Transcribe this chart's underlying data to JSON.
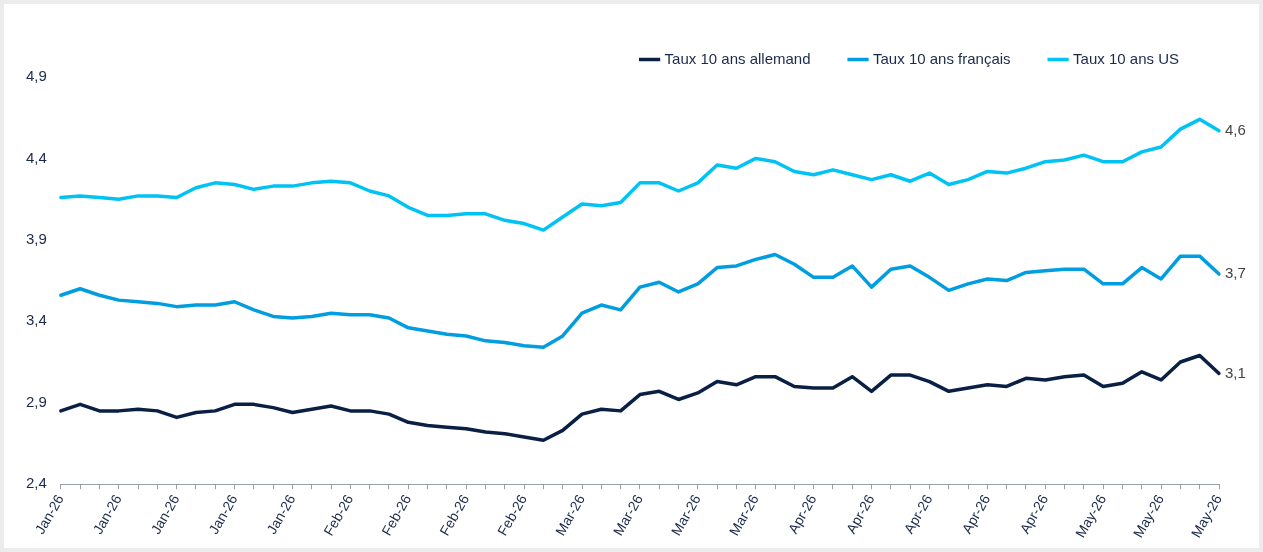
{
  "chart_data": {
    "type": "line",
    "categories": [
      "Jan-26",
      null,
      null,
      "Jan-26",
      null,
      null,
      "Jan-26",
      null,
      null,
      "Jan-26",
      null,
      null,
      "Jan-26",
      null,
      null,
      "Feb-26",
      null,
      null,
      "Feb-26",
      null,
      null,
      "Feb-26",
      null,
      null,
      "Feb-26",
      null,
      null,
      "Mar-26",
      null,
      null,
      "Mar-26",
      null,
      null,
      "Mar-26",
      null,
      null,
      "Mar-26",
      null,
      null,
      "Apr-26",
      null,
      null,
      "Apr-26",
      null,
      null,
      "Apr-26",
      null,
      null,
      "Apr-26",
      null,
      null,
      "Apr-26",
      null,
      null,
      "May-26",
      null,
      null,
      "May-26",
      null,
      null,
      "May-26"
    ],
    "series": [
      {
        "name": "Taux 10 ans allemand",
        "color": "#0a1f44",
        "values": [
          2.85,
          2.89,
          2.85,
          2.85,
          2.86,
          2.85,
          2.81,
          2.84,
          2.85,
          2.89,
          2.89,
          2.87,
          2.84,
          2.86,
          2.88,
          2.85,
          2.85,
          2.83,
          2.78,
          2.76,
          2.75,
          2.74,
          2.72,
          2.71,
          2.69,
          2.67,
          2.73,
          2.83,
          2.86,
          2.85,
          2.95,
          2.97,
          2.92,
          2.96,
          3.03,
          3.01,
          3.06,
          3.06,
          3.0,
          2.99,
          2.99,
          3.06,
          2.97,
          3.07,
          3.07,
          3.03,
          2.97,
          2.99,
          3.01,
          3.0,
          3.05,
          3.04,
          3.06,
          3.07,
          3.0,
          3.02,
          3.09,
          3.04,
          3.15,
          3.19,
          3.08
        ],
        "value_labels": [
          null,
          null,
          null,
          null,
          null,
          null,
          null,
          null,
          null,
          null,
          null,
          null,
          null,
          null,
          null,
          null,
          null,
          null,
          null,
          null,
          null,
          null,
          null,
          null,
          null,
          null,
          null,
          null,
          null,
          null,
          null,
          null,
          null,
          null,
          null,
          null,
          null,
          null,
          null,
          null,
          null,
          null,
          null,
          null,
          null,
          null,
          null,
          null,
          null,
          null,
          null,
          null,
          null,
          null,
          null,
          null,
          null,
          null,
          null,
          null,
          "3,1"
        ]
      },
      {
        "name": "Taux 10 ans français",
        "color": "#009ee0",
        "values": [
          3.56,
          3.6,
          3.56,
          3.53,
          3.52,
          3.51,
          3.49,
          3.5,
          3.5,
          3.52,
          3.47,
          3.43,
          3.42,
          3.43,
          3.45,
          3.44,
          3.44,
          3.42,
          3.36,
          3.34,
          3.32,
          3.31,
          3.28,
          3.27,
          3.25,
          3.24,
          3.31,
          3.45,
          3.5,
          3.47,
          3.61,
          3.64,
          3.58,
          3.63,
          3.73,
          3.74,
          3.78,
          3.81,
          3.75,
          3.67,
          3.67,
          3.74,
          3.61,
          3.72,
          3.74,
          3.67,
          3.59,
          3.63,
          3.66,
          3.65,
          3.7,
          3.71,
          3.72,
          3.72,
          3.63,
          3.63,
          3.73,
          3.66,
          3.8,
          3.8,
          3.69
        ],
        "value_labels": [
          null,
          null,
          null,
          null,
          null,
          null,
          null,
          null,
          null,
          null,
          null,
          null,
          null,
          null,
          null,
          null,
          null,
          null,
          null,
          null,
          null,
          null,
          null,
          null,
          null,
          null,
          null,
          null,
          null,
          null,
          null,
          null,
          null,
          null,
          null,
          null,
          null,
          null,
          null,
          null,
          null,
          null,
          null,
          null,
          null,
          null,
          null,
          null,
          null,
          null,
          null,
          null,
          null,
          null,
          null,
          null,
          null,
          null,
          null,
          null,
          "3,7"
        ]
      },
      {
        "name": "Taux 10 ans US",
        "color": "#00c3f3",
        "values": [
          4.16,
          4.17,
          4.16,
          4.15,
          4.17,
          4.17,
          4.16,
          4.22,
          4.25,
          4.24,
          4.21,
          4.23,
          4.23,
          4.25,
          4.26,
          4.25,
          4.2,
          4.17,
          4.1,
          4.05,
          4.05,
          4.06,
          4.06,
          4.02,
          4.0,
          3.96,
          4.04,
          4.12,
          4.11,
          4.13,
          4.25,
          4.25,
          4.2,
          4.25,
          4.36,
          4.34,
          4.4,
          4.38,
          4.32,
          4.3,
          4.33,
          4.3,
          4.27,
          4.3,
          4.26,
          4.31,
          4.24,
          4.27,
          4.32,
          4.31,
          4.34,
          4.38,
          4.39,
          4.42,
          4.38,
          4.38,
          4.44,
          4.47,
          4.58,
          4.64,
          4.57
        ],
        "value_labels": [
          null,
          null,
          null,
          null,
          null,
          null,
          null,
          null,
          null,
          null,
          null,
          null,
          null,
          null,
          null,
          null,
          null,
          null,
          null,
          null,
          null,
          null,
          null,
          null,
          null,
          null,
          null,
          null,
          null,
          null,
          null,
          null,
          null,
          null,
          null,
          null,
          null,
          null,
          null,
          null,
          null,
          null,
          null,
          null,
          null,
          null,
          null,
          null,
          null,
          null,
          null,
          null,
          null,
          null,
          null,
          null,
          null,
          null,
          null,
          null,
          "4,6"
        ]
      }
    ],
    "ylim": [
      2.4,
      4.9
    ],
    "yticks": [
      {
        "value": 2.4,
        "label": "2,4"
      },
      {
        "value": 2.9,
        "label": "2,9"
      },
      {
        "value": 3.4,
        "label": "3,4"
      },
      {
        "value": 3.9,
        "label": "3,9"
      },
      {
        "value": 4.4,
        "label": "4,4"
      },
      {
        "value": 4.9,
        "label": "4,9"
      }
    ],
    "legend": "top",
    "marker": "none"
  }
}
